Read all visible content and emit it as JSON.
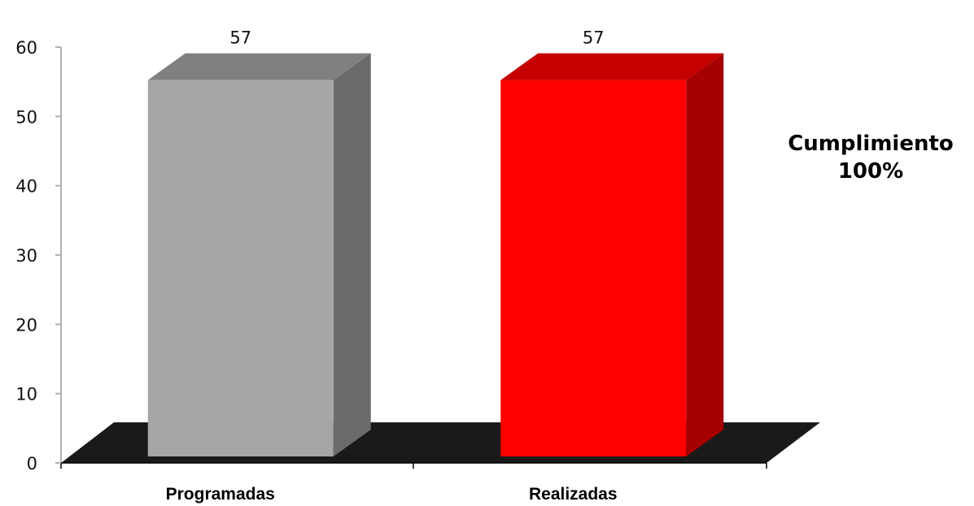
{
  "chart_data": {
    "type": "bar",
    "categories": [
      "Programadas",
      "Realizadas"
    ],
    "values": [
      57,
      57
    ],
    "data_labels": [
      "57",
      "57"
    ],
    "ylim": [
      0,
      60
    ],
    "y_ticks": [
      0,
      10,
      20,
      30,
      40,
      50,
      60
    ],
    "grid": false,
    "style": "3d-column",
    "colors": {
      "Programadas": "#a6a6a6",
      "Realizadas": "#ff0000",
      "floor": "#1a1a1a",
      "axis": "#000000"
    },
    "annotation": {
      "line1": "Cumplimiento",
      "line2": "100%"
    }
  }
}
